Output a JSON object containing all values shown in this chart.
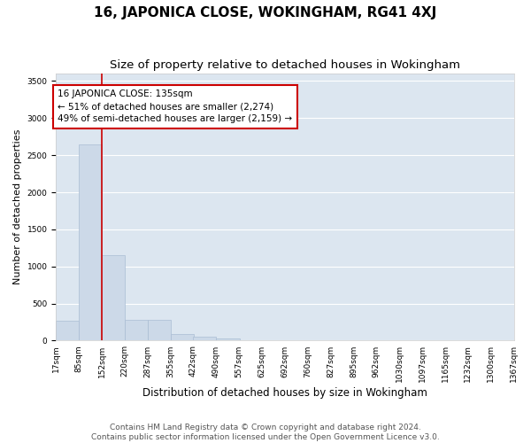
{
  "title": "16, JAPONICA CLOSE, WOKINGHAM, RG41 4XJ",
  "subtitle": "Size of property relative to detached houses in Wokingham",
  "xlabel": "Distribution of detached houses by size in Wokingham",
  "ylabel": "Number of detached properties",
  "bar_color": "#ccd9e8",
  "bar_edge_color": "#aabdd4",
  "background_color": "#dce6f0",
  "grid_color": "#ffffff",
  "annotation_box_color": "#cc0000",
  "property_line_color": "#cc0000",
  "annotation_text": "16 JAPONICA CLOSE: 135sqm\n← 51% of detached houses are smaller (2,274)\n49% of semi-detached houses are larger (2,159) →",
  "bin_edges": [
    17,
    85,
    152,
    220,
    287,
    355,
    422,
    490,
    557,
    625,
    692,
    760,
    827,
    895,
    962,
    1030,
    1097,
    1165,
    1232,
    1300,
    1367
  ],
  "bin_labels": [
    "17sqm",
    "85sqm",
    "152sqm",
    "220sqm",
    "287sqm",
    "355sqm",
    "422sqm",
    "490sqm",
    "557sqm",
    "625sqm",
    "692sqm",
    "760sqm",
    "827sqm",
    "895sqm",
    "962sqm",
    "1030sqm",
    "1097sqm",
    "1165sqm",
    "1232sqm",
    "1300sqm",
    "1367sqm"
  ],
  "bar_heights": [
    270,
    2650,
    1150,
    285,
    285,
    95,
    55,
    35,
    0,
    0,
    0,
    0,
    0,
    0,
    0,
    0,
    0,
    0,
    0,
    0
  ],
  "ylim": [
    0,
    3600
  ],
  "yticks": [
    0,
    500,
    1000,
    1500,
    2000,
    2500,
    3000,
    3500
  ],
  "footer_text": "Contains HM Land Registry data © Crown copyright and database right 2024.\nContains public sector information licensed under the Open Government Licence v3.0.",
  "title_fontsize": 11,
  "subtitle_fontsize": 9.5,
  "xlabel_fontsize": 8.5,
  "ylabel_fontsize": 8,
  "tick_fontsize": 6.5,
  "annotation_fontsize": 7.5,
  "footer_fontsize": 6.5
}
